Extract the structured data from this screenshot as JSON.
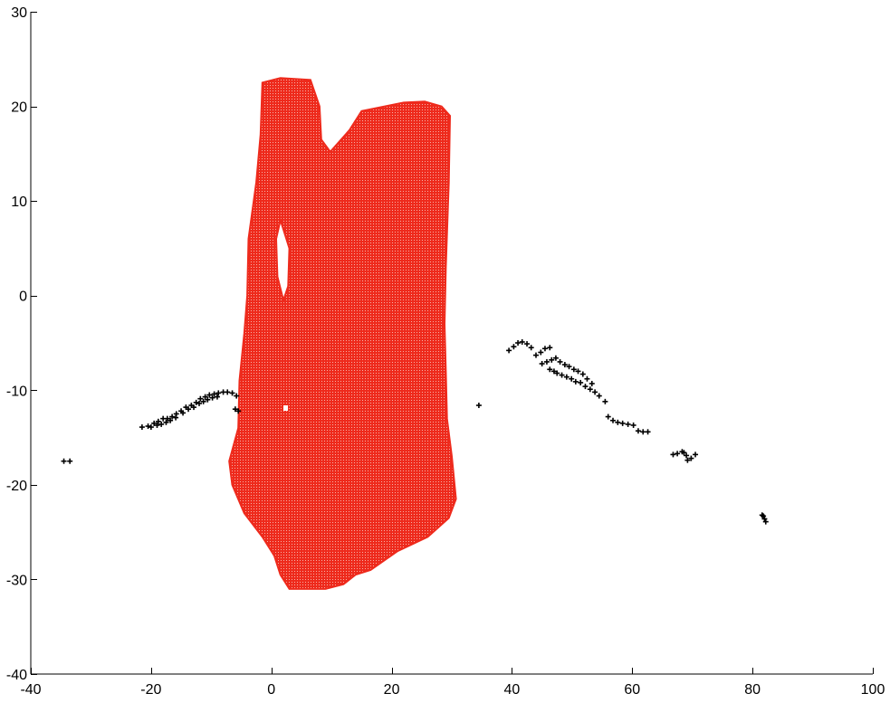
{
  "chart_data": {
    "type": "scatter",
    "title": "",
    "xlabel": "",
    "ylabel": "",
    "xlim": [
      -40,
      100
    ],
    "ylim": [
      -40,
      30
    ],
    "xticks": [
      -40,
      -20,
      0,
      20,
      40,
      60,
      80,
      100
    ],
    "yticks": [
      -40,
      -30,
      -20,
      -10,
      0,
      10,
      20,
      30
    ],
    "grid": false,
    "legend": "none",
    "series": [
      {
        "color": "#ee2a1c",
        "marker": "dot",
        "description_outline": [
          [
            -1.5,
            22.5
          ],
          [
            1.5,
            23.0
          ],
          [
            6.5,
            22.8
          ],
          [
            8.0,
            20.0
          ],
          [
            8.3,
            16.5
          ],
          [
            9.8,
            15.2
          ],
          [
            13.0,
            17.5
          ],
          [
            15.0,
            19.5
          ],
          [
            22.0,
            20.4
          ],
          [
            25.5,
            20.5
          ],
          [
            28.3,
            20.0
          ],
          [
            29.7,
            19.0
          ],
          [
            29.5,
            12.0
          ],
          [
            29.0,
            3.0
          ],
          [
            28.8,
            -3.0
          ],
          [
            29.0,
            -8.0
          ],
          [
            29.2,
            -13.0
          ],
          [
            30.0,
            -17.0
          ],
          [
            30.7,
            -21.5
          ],
          [
            29.5,
            -23.5
          ],
          [
            26.0,
            -25.5
          ],
          [
            21.0,
            -27.0
          ],
          [
            16.5,
            -29.0
          ],
          [
            14.0,
            -29.5
          ],
          [
            12.0,
            -30.5
          ],
          [
            9.0,
            -31.0
          ],
          [
            3.0,
            -31.0
          ],
          [
            1.5,
            -29.5
          ],
          [
            0.5,
            -27.5
          ],
          [
            -1.5,
            -25.5
          ],
          [
            -4.5,
            -23.0
          ],
          [
            -6.5,
            -20.0
          ],
          [
            -7.0,
            -17.5
          ],
          [
            -5.5,
            -14.0
          ],
          [
            -5.3,
            -9.0
          ],
          [
            -4.5,
            -4.0
          ],
          [
            -4.0,
            0.0
          ],
          [
            -3.8,
            6.0
          ],
          [
            -2.5,
            12.0
          ],
          [
            -1.8,
            17.0
          ],
          [
            -1.5,
            22.5
          ]
        ],
        "hole": [
          [
            1.5,
            8.0
          ],
          [
            3.0,
            5.0
          ],
          [
            2.8,
            1.0
          ],
          [
            2.0,
            -0.5
          ],
          [
            1.0,
            2.0
          ],
          [
            0.8,
            6.0
          ],
          [
            1.5,
            8.0
          ]
        ]
      },
      {
        "color": "#000000",
        "marker": "plus",
        "points": [
          [
            -34.5,
            -17.5
          ],
          [
            -33.5,
            -17.5
          ],
          [
            -21.5,
            -13.9
          ],
          [
            -20.5,
            -13.8
          ],
          [
            -19.5,
            -13.5
          ],
          [
            -18.8,
            -13.3
          ],
          [
            -18.0,
            -13.0
          ],
          [
            -17.3,
            -13.0
          ],
          [
            -16.5,
            -12.8
          ],
          [
            -15.8,
            -12.5
          ],
          [
            -15.0,
            -12.2
          ],
          [
            -14.2,
            -11.8
          ],
          [
            -13.3,
            -11.6
          ],
          [
            -12.5,
            -11.3
          ],
          [
            -11.8,
            -10.9
          ],
          [
            -11.0,
            -10.7
          ],
          [
            -10.3,
            -10.5
          ],
          [
            -9.5,
            -10.4
          ],
          [
            -8.8,
            -10.3
          ],
          [
            -8.0,
            -10.2
          ],
          [
            -7.3,
            -10.2
          ],
          [
            -6.5,
            -10.3
          ],
          [
            -5.8,
            -10.6
          ],
          [
            -20.0,
            -13.9
          ],
          [
            -19.0,
            -13.7
          ],
          [
            -18.3,
            -13.6
          ],
          [
            -17.5,
            -13.4
          ],
          [
            -16.8,
            -13.2
          ],
          [
            -15.9,
            -12.9
          ],
          [
            -14.7,
            -12.4
          ],
          [
            -13.8,
            -12.0
          ],
          [
            -12.9,
            -11.8
          ],
          [
            -12.0,
            -11.4
          ],
          [
            -11.3,
            -11.2
          ],
          [
            -10.6,
            -11.0
          ],
          [
            -9.8,
            -10.8
          ],
          [
            -9.0,
            -10.7
          ],
          [
            -6.0,
            -12.0
          ],
          [
            -5.5,
            -12.2
          ],
          [
            34.5,
            -11.6
          ],
          [
            39.5,
            -5.8
          ],
          [
            40.3,
            -5.4
          ],
          [
            41.0,
            -5.0
          ],
          [
            41.7,
            -4.9
          ],
          [
            42.5,
            -5.1
          ],
          [
            43.2,
            -5.5
          ],
          [
            44.0,
            -6.3
          ],
          [
            44.8,
            -6.0
          ],
          [
            45.5,
            -5.6
          ],
          [
            46.3,
            -5.5
          ],
          [
            45.0,
            -7.2
          ],
          [
            45.8,
            -7.0
          ],
          [
            46.6,
            -6.8
          ],
          [
            47.3,
            -6.6
          ],
          [
            48.0,
            -7.0
          ],
          [
            48.8,
            -7.3
          ],
          [
            49.5,
            -7.5
          ],
          [
            50.3,
            -7.8
          ],
          [
            51.0,
            -8.0
          ],
          [
            51.8,
            -8.3
          ],
          [
            47.5,
            -8.2
          ],
          [
            48.3,
            -8.4
          ],
          [
            49.1,
            -8.6
          ],
          [
            49.9,
            -8.8
          ],
          [
            50.6,
            -9.1
          ],
          [
            51.4,
            -9.2
          ],
          [
            52.2,
            -9.6
          ],
          [
            53.0,
            -9.9
          ],
          [
            53.8,
            -10.2
          ],
          [
            54.5,
            -10.6
          ],
          [
            55.5,
            -11.2
          ],
          [
            46.3,
            -7.8
          ],
          [
            47.0,
            -8.0
          ],
          [
            52.5,
            -8.8
          ],
          [
            53.3,
            -9.3
          ],
          [
            56.0,
            -12.8
          ],
          [
            56.8,
            -13.2
          ],
          [
            57.6,
            -13.4
          ],
          [
            58.4,
            -13.5
          ],
          [
            59.3,
            -13.6
          ],
          [
            60.2,
            -13.7
          ],
          [
            61.0,
            -14.3
          ],
          [
            61.8,
            -14.4
          ],
          [
            62.6,
            -14.4
          ],
          [
            66.8,
            -16.8
          ],
          [
            67.5,
            -16.7
          ],
          [
            68.3,
            -16.5
          ],
          [
            69.0,
            -16.9
          ],
          [
            69.8,
            -17.2
          ],
          [
            70.5,
            -16.8
          ],
          [
            69.2,
            -17.4
          ],
          [
            68.6,
            -16.6
          ],
          [
            81.8,
            -23.3
          ],
          [
            82.0,
            -23.6
          ],
          [
            82.2,
            -23.9
          ],
          [
            81.6,
            -23.2
          ]
        ]
      }
    ]
  }
}
